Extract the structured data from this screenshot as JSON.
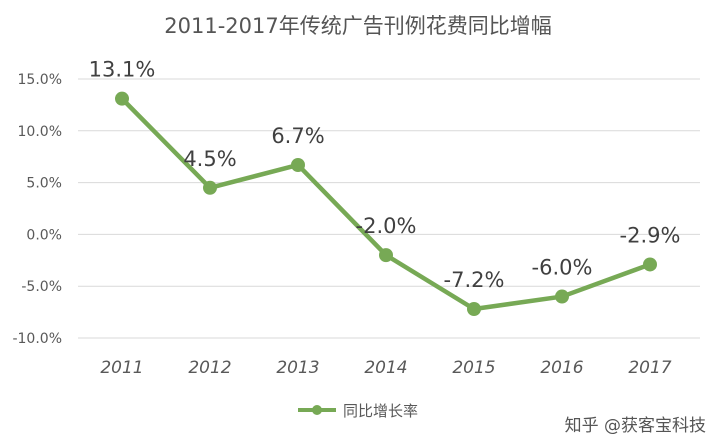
{
  "chart_data": {
    "type": "line",
    "title": "2011-2017年传统广告刊例花费同比增幅",
    "categories": [
      "2011",
      "2012",
      "2013",
      "2014",
      "2015",
      "2016",
      "2017"
    ],
    "series": [
      {
        "name": "同比增长率",
        "values": [
          13.1,
          4.5,
          6.7,
          -2.0,
          -7.2,
          -6.0,
          -2.9
        ],
        "labels": [
          "13.1%",
          "4.5%",
          "6.7%",
          "-2.0%",
          "-7.2%",
          "-6.0%",
          "-2.9%"
        ],
        "color": "#77a955"
      }
    ],
    "ylim": [
      -10,
      15
    ],
    "yticks": [
      15,
      10,
      5,
      0,
      -5,
      -10
    ],
    "ytick_labels": [
      "15.0%",
      "10.0%",
      "5.0%",
      "0.0%",
      "-5.0%",
      "-10.0%"
    ],
    "grid": true,
    "legend": "bottom"
  },
  "watermark": "知乎 @获客宝科技"
}
